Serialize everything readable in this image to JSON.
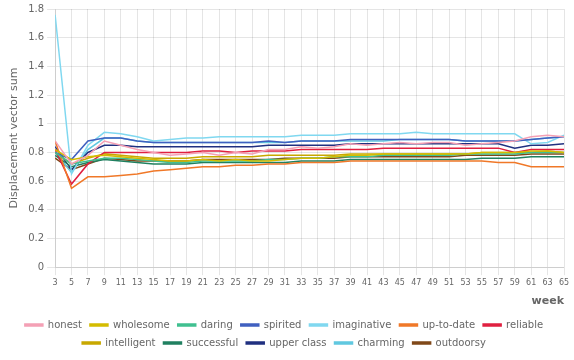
{
  "chart_data": {
    "type": "line",
    "title": "",
    "y_label": "Displacement vector sum",
    "x_label": "week",
    "x": [
      3,
      5,
      7,
      9,
      11,
      13,
      15,
      17,
      19,
      21,
      23,
      25,
      27,
      29,
      31,
      33,
      35,
      37,
      39,
      41,
      43,
      45,
      47,
      49,
      51,
      53,
      55,
      57,
      59,
      61,
      63,
      65
    ],
    "xlim": [
      3,
      65
    ],
    "xticks": [
      3,
      5,
      7,
      9,
      11,
      13,
      15,
      17,
      19,
      21,
      23,
      25,
      27,
      29,
      31,
      33,
      35,
      37,
      39,
      41,
      43,
      45,
      47,
      49,
      51,
      53,
      55,
      57,
      59,
      61,
      63,
      65
    ],
    "ylim": [
      0,
      1.8
    ],
    "yticks": [
      0,
      0.2,
      0.4,
      0.6,
      0.8,
      1,
      1.2,
      1.4,
      1.6,
      1.8
    ],
    "grid": true,
    "legend": "bottom",
    "series": [
      {
        "name": "honest",
        "color": "#f4a0b5",
        "values": [
          0.88,
          0.72,
          0.78,
          0.88,
          0.85,
          0.82,
          0.8,
          0.78,
          0.79,
          0.8,
          0.78,
          0.8,
          0.79,
          0.82,
          0.82,
          0.84,
          0.83,
          0.84,
          0.86,
          0.85,
          0.86,
          0.87,
          0.86,
          0.87,
          0.87,
          0.85,
          0.86,
          0.87,
          0.88,
          0.91,
          0.92,
          0.91
        ]
      },
      {
        "name": "wholesome",
        "color": "#d4bc00",
        "values": [
          0.82,
          0.75,
          0.77,
          0.78,
          0.77,
          0.76,
          0.75,
          0.74,
          0.74,
          0.75,
          0.74,
          0.75,
          0.74,
          0.74,
          0.75,
          0.76,
          0.76,
          0.77,
          0.78,
          0.78,
          0.79,
          0.79,
          0.79,
          0.79,
          0.79,
          0.79,
          0.8,
          0.8,
          0.8,
          0.81,
          0.81,
          0.8
        ]
      },
      {
        "name": "daring",
        "color": "#40c090",
        "values": [
          0.8,
          0.72,
          0.74,
          0.76,
          0.76,
          0.75,
          0.74,
          0.73,
          0.73,
          0.74,
          0.74,
          0.74,
          0.74,
          0.75,
          0.75,
          0.76,
          0.76,
          0.77,
          0.77,
          0.77,
          0.78,
          0.78,
          0.78,
          0.78,
          0.78,
          0.79,
          0.79,
          0.79,
          0.79,
          0.8,
          0.8,
          0.8
        ]
      },
      {
        "name": "spirited",
        "color": "#4060c0",
        "values": [
          0.8,
          0.75,
          0.88,
          0.9,
          0.9,
          0.88,
          0.87,
          0.87,
          0.87,
          0.87,
          0.87,
          0.87,
          0.87,
          0.88,
          0.87,
          0.88,
          0.88,
          0.88,
          0.89,
          0.89,
          0.89,
          0.89,
          0.89,
          0.89,
          0.89,
          0.88,
          0.88,
          0.88,
          0.88,
          0.89,
          0.9,
          0.91
        ]
      },
      {
        "name": "imaginative",
        "color": "#80d8f0",
        "values": [
          1.76,
          0.65,
          0.85,
          0.94,
          0.93,
          0.91,
          0.88,
          0.89,
          0.9,
          0.9,
          0.91,
          0.91,
          0.91,
          0.91,
          0.91,
          0.92,
          0.92,
          0.92,
          0.93,
          0.93,
          0.93,
          0.93,
          0.94,
          0.93,
          0.93,
          0.93,
          0.93,
          0.93,
          0.93,
          0.86,
          0.87,
          0.92
        ]
      },
      {
        "name": "up-to-date",
        "color": "#f07828",
        "values": [
          0.88,
          0.55,
          0.63,
          0.63,
          0.64,
          0.65,
          0.67,
          0.68,
          0.69,
          0.7,
          0.7,
          0.71,
          0.71,
          0.72,
          0.72,
          0.73,
          0.73,
          0.73,
          0.74,
          0.74,
          0.74,
          0.74,
          0.74,
          0.74,
          0.74,
          0.74,
          0.74,
          0.73,
          0.73,
          0.7,
          0.7,
          0.7
        ]
      },
      {
        "name": "reliable",
        "color": "#e02040",
        "values": [
          0.82,
          0.58,
          0.72,
          0.8,
          0.8,
          0.8,
          0.8,
          0.8,
          0.8,
          0.81,
          0.81,
          0.8,
          0.81,
          0.81,
          0.81,
          0.82,
          0.82,
          0.82,
          0.82,
          0.82,
          0.83,
          0.83,
          0.83,
          0.83,
          0.83,
          0.83,
          0.83,
          0.83,
          0.8,
          0.82,
          0.82,
          0.82
        ]
      },
      {
        "name": "intelligent",
        "color": "#c8a800",
        "values": [
          0.8,
          0.72,
          0.76,
          0.79,
          0.78,
          0.77,
          0.76,
          0.76,
          0.76,
          0.77,
          0.77,
          0.77,
          0.77,
          0.78,
          0.78,
          0.78,
          0.78,
          0.78,
          0.79,
          0.79,
          0.79,
          0.79,
          0.79,
          0.79,
          0.79,
          0.79,
          0.8,
          0.8,
          0.8,
          0.8,
          0.81,
          0.8
        ]
      },
      {
        "name": "successful",
        "color": "#208060",
        "values": [
          0.78,
          0.7,
          0.73,
          0.75,
          0.74,
          0.73,
          0.72,
          0.72,
          0.72,
          0.73,
          0.73,
          0.73,
          0.73,
          0.73,
          0.73,
          0.74,
          0.74,
          0.74,
          0.75,
          0.75,
          0.75,
          0.75,
          0.75,
          0.75,
          0.75,
          0.75,
          0.76,
          0.76,
          0.76,
          0.77,
          0.77,
          0.77
        ]
      },
      {
        "name": "upper class",
        "color": "#203080",
        "values": [
          0.84,
          0.68,
          0.8,
          0.85,
          0.85,
          0.84,
          0.84,
          0.84,
          0.84,
          0.84,
          0.84,
          0.84,
          0.84,
          0.85,
          0.85,
          0.85,
          0.85,
          0.85,
          0.86,
          0.86,
          0.86,
          0.86,
          0.86,
          0.86,
          0.86,
          0.86,
          0.86,
          0.86,
          0.83,
          0.85,
          0.85,
          0.86
        ]
      },
      {
        "name": "charming",
        "color": "#60c8e0",
        "values": [
          0.8,
          0.66,
          0.82,
          0.9,
          0.9,
          0.88,
          0.87,
          0.87,
          0.87,
          0.87,
          0.87,
          0.87,
          0.87,
          0.87,
          0.87,
          0.88,
          0.88,
          0.88,
          0.88,
          0.88,
          0.88,
          0.89,
          0.89,
          0.89,
          0.89,
          0.88,
          0.88,
          0.88,
          0.88,
          0.89,
          0.9,
          0.91
        ]
      },
      {
        "name": "outdoorsy",
        "color": "#804818",
        "values": [
          0.76,
          0.68,
          0.72,
          0.76,
          0.75,
          0.74,
          0.74,
          0.74,
          0.74,
          0.75,
          0.75,
          0.75,
          0.75,
          0.75,
          0.76,
          0.76,
          0.76,
          0.76,
          0.77,
          0.77,
          0.77,
          0.77,
          0.77,
          0.77,
          0.77,
          0.78,
          0.78,
          0.78,
          0.78,
          0.79,
          0.79,
          0.79
        ]
      }
    ]
  }
}
